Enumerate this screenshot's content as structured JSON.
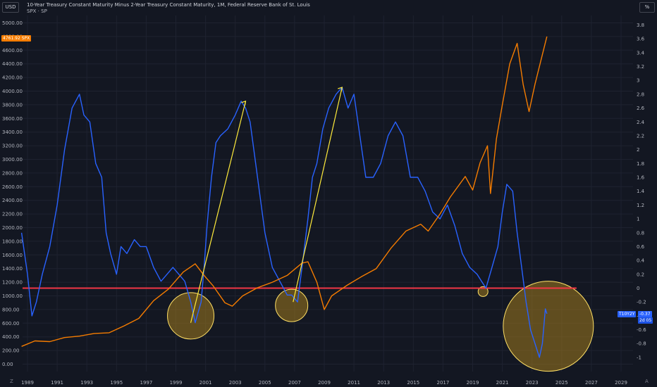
{
  "header": {
    "left_unit": "USD",
    "right_unit": "%",
    "title": "10-Year Treasury Constant Maturity Minus 2-Year Treasury Constant Maturity, 1M, Federal Reserve Bank of St. Louis",
    "subtitle": "SPX · SP"
  },
  "badges": {
    "spx_price": "4761.92",
    "spx_label": "SPX",
    "spread_label": "T10Y2Y",
    "spread_value": "-0.37",
    "spread_sub": "2d 05"
  },
  "corners": {
    "left": "Z",
    "right": "A"
  },
  "colors": {
    "background": "#131722",
    "spread_line": "#2962ff",
    "spx_line": "#f57c00",
    "zero_line": "#f23645",
    "trend_line": "#ffeb3b",
    "circle_fill": "#a07a1e",
    "circle_stroke": "#ffe066"
  },
  "chart_data": {
    "type": "line",
    "x_ticks": [
      "1989",
      "1991",
      "1993",
      "1995",
      "1997",
      "1999",
      "2001",
      "2003",
      "2005",
      "2007",
      "2009",
      "2011",
      "2013",
      "2015",
      "2017",
      "2019",
      "2021",
      "2023",
      "2025",
      "2027",
      "2029"
    ],
    "left_axis": {
      "unit": "USD",
      "range": [
        0,
        5000
      ],
      "ticks": [
        "0.00",
        "200.00",
        "400.00",
        "600.00",
        "800.00",
        "1000.00",
        "1200.00",
        "1400.00",
        "1600.00",
        "1800.00",
        "2000.00",
        "2200.00",
        "2400.00",
        "2600.00",
        "2800.00",
        "3000.00",
        "3200.00",
        "3400.00",
        "3600.00",
        "3800.00",
        "4000.00",
        "4200.00",
        "4400.00",
        "4600.00",
        "4800.00",
        "5000.00"
      ]
    },
    "right_axis": {
      "unit": "%",
      "range": [
        -1.0,
        3.8
      ],
      "ticks": [
        "-1",
        "-0.8",
        "-0.6",
        "-0.4",
        "-0.2",
        "0",
        "0.2",
        "0.4",
        "0.6",
        "0.8",
        "1",
        "1.2",
        "1.4",
        "1.6",
        "1.8",
        "2",
        "2.2",
        "2.4",
        "2.6",
        "2.8",
        "3",
        "3.2",
        "3.4",
        "3.6",
        "3.8"
      ]
    },
    "series": [
      {
        "name": "10-Year Treasury Constant Maturity Minus 2-Year Treasury Constant Maturity",
        "axis": "right",
        "x": [
          1988.6,
          1989.0,
          1989.3,
          1989.6,
          1990.0,
          1990.5,
          1991.0,
          1991.5,
          1992.0,
          1992.5,
          1992.8,
          1993.2,
          1993.6,
          1994.0,
          1994.3,
          1994.6,
          1995.0,
          1995.3,
          1995.7,
          1996.2,
          1996.6,
          1997.0,
          1997.5,
          1998.0,
          1998.4,
          1998.8,
          1999.2,
          1999.6,
          2000.0,
          2000.3,
          2000.7,
          2000.9,
          2001.1,
          2001.4,
          2001.7,
          2002.0,
          2002.5,
          2003.0,
          2003.4,
          2003.7,
          2004.0,
          2004.5,
          2005.0,
          2005.5,
          2006.0,
          2006.5,
          2006.8,
          2007.2,
          2007.5,
          2007.9,
          2008.2,
          2008.5,
          2008.9,
          2009.3,
          2009.8,
          2010.2,
          2010.6,
          2011.0,
          2011.4,
          2011.8,
          2012.3,
          2012.8,
          2013.3,
          2013.8,
          2014.3,
          2014.8,
          2015.3,
          2015.8,
          2016.3,
          2016.8,
          2017.3,
          2017.8,
          2018.3,
          2018.8,
          2019.3,
          2019.6,
          2019.9,
          2020.3,
          2020.7,
          2021.0,
          2021.3,
          2021.7,
          2022.0,
          2022.3,
          2022.6,
          2022.9,
          2023.2,
          2023.5,
          2023.7,
          2023.9,
          2024.0
        ],
        "values": [
          0.8,
          0.2,
          -0.4,
          -0.2,
          0.2,
          0.6,
          1.2,
          2.0,
          2.6,
          2.8,
          2.5,
          2.4,
          1.8,
          1.6,
          0.8,
          0.5,
          0.2,
          0.6,
          0.5,
          0.7,
          0.6,
          0.6,
          0.3,
          0.1,
          0.2,
          0.3,
          0.2,
          0.1,
          -0.2,
          -0.5,
          -0.2,
          0.3,
          0.9,
          1.6,
          2.1,
          2.2,
          2.3,
          2.5,
          2.7,
          2.6,
          2.4,
          1.6,
          0.8,
          0.3,
          0.1,
          -0.1,
          -0.1,
          -0.2,
          0.3,
          1.0,
          1.6,
          1.8,
          2.3,
          2.6,
          2.8,
          2.9,
          2.6,
          2.8,
          2.2,
          1.6,
          1.6,
          1.8,
          2.2,
          2.4,
          2.2,
          1.6,
          1.6,
          1.4,
          1.1,
          1.0,
          1.2,
          0.9,
          0.5,
          0.3,
          0.2,
          0.1,
          0.0,
          0.3,
          0.6,
          1.1,
          1.5,
          1.4,
          0.8,
          0.3,
          -0.2,
          -0.6,
          -0.8,
          -1.0,
          -0.8,
          -0.3,
          -0.37
        ]
      },
      {
        "name": "SPX",
        "axis": "left",
        "x": [
          1988.6,
          1989.5,
          1990.5,
          1991.5,
          1992.5,
          1993.5,
          1994.5,
          1995.5,
          1996.5,
          1997.5,
          1998.5,
          1999.5,
          2000.3,
          2000.9,
          2001.5,
          2002.3,
          2002.8,
          2003.5,
          2004.5,
          2005.5,
          2006.5,
          2007.5,
          2007.9,
          2008.5,
          2009.0,
          2009.5,
          2010.5,
          2011.5,
          2012.5,
          2013.5,
          2014.5,
          2015.5,
          2016.0,
          2016.8,
          2017.5,
          2018.5,
          2019.0,
          2019.5,
          2020.0,
          2020.2,
          2020.6,
          2021.0,
          2021.5,
          2022.0,
          2022.4,
          2022.8,
          2023.2,
          2023.6,
          2024.0
        ],
        "values": [
          260,
          340,
          330,
          390,
          410,
          450,
          460,
          560,
          670,
          930,
          1100,
          1350,
          1470,
          1300,
          1150,
          900,
          850,
          1000,
          1120,
          1200,
          1300,
          1480,
          1500,
          1200,
          800,
          1000,
          1150,
          1280,
          1400,
          1700,
          1950,
          2050,
          1950,
          2200,
          2450,
          2750,
          2550,
          2950,
          3200,
          2500,
          3300,
          3800,
          4400,
          4700,
          4100,
          3700,
          4100,
          4450,
          4800
        ]
      }
    ],
    "reference_line_value": 0
  }
}
